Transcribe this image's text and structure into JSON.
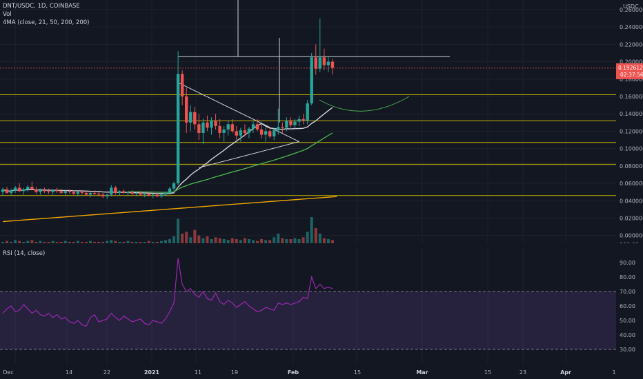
{
  "header": {
    "symbol": "DNT/USDC, 1D, COINBASE",
    "indicator_vol": "Vol",
    "indicator_ma": "4MA (close, 21, 50, 200, 200)"
  },
  "rsi": {
    "label": "RSI (14, close)",
    "upper_band": 70,
    "lower_band": 30,
    "axis_labels": [
      "90.00",
      "80.00",
      "70.00",
      "60.00",
      "50.00",
      "40.00",
      "30.00"
    ]
  },
  "price_axis": {
    "currency": "USDC",
    "labels": [
      "0.260000",
      "0.240000",
      "0.220000",
      "0.200000",
      "0.180000",
      "0.160000",
      "0.140000",
      "0.120000",
      "0.100000",
      "0.080000",
      "0.060000",
      "0.040000",
      "0.020000",
      "0.000000"
    ],
    "vol_label": "100.00",
    "current_price": "0.192612",
    "countdown": "02:37:56"
  },
  "time_axis": {
    "labels": [
      "Dec",
      "14",
      "22",
      "2021",
      "11",
      "19",
      "Feb",
      "15",
      "Mar",
      "15",
      "23",
      "Apr",
      "1"
    ]
  },
  "colors": {
    "background": "#131722",
    "up": "#26a69a",
    "down": "#ef5350",
    "horizontal_level": "#c8b400",
    "rsi_line": "#9c27b0",
    "rsi_band": "#7e57c2",
    "ma_fast": "#26a69a",
    "ma_mid": "#4caf50",
    "ma_slow": "#d1d4dc",
    "ma_long": "#f0a500"
  },
  "chart_data": {
    "type": "candlestick",
    "horizontal_levels": [
      0.162,
      0.132,
      0.107,
      0.082,
      0.046
    ],
    "ohlc": [
      [
        0.05,
        0.055,
        0.046,
        0.053
      ],
      [
        0.053,
        0.056,
        0.048,
        0.049
      ],
      [
        0.049,
        0.054,
        0.046,
        0.052
      ],
      [
        0.052,
        0.057,
        0.049,
        0.055
      ],
      [
        0.055,
        0.06,
        0.05,
        0.051
      ],
      [
        0.051,
        0.055,
        0.047,
        0.053
      ],
      [
        0.053,
        0.058,
        0.05,
        0.056
      ],
      [
        0.056,
        0.062,
        0.052,
        0.053
      ],
      [
        0.053,
        0.056,
        0.048,
        0.05
      ],
      [
        0.05,
        0.054,
        0.047,
        0.052
      ],
      [
        0.052,
        0.055,
        0.049,
        0.051
      ],
      [
        0.051,
        0.054,
        0.048,
        0.05
      ],
      [
        0.05,
        0.053,
        0.047,
        0.052
      ],
      [
        0.052,
        0.055,
        0.049,
        0.051
      ],
      [
        0.051,
        0.054,
        0.048,
        0.049
      ],
      [
        0.049,
        0.052,
        0.046,
        0.051
      ],
      [
        0.051,
        0.053,
        0.048,
        0.05
      ],
      [
        0.05,
        0.052,
        0.047,
        0.048
      ],
      [
        0.048,
        0.051,
        0.045,
        0.05
      ],
      [
        0.05,
        0.052,
        0.047,
        0.049
      ],
      [
        0.049,
        0.051,
        0.046,
        0.047
      ],
      [
        0.047,
        0.05,
        0.044,
        0.049
      ],
      [
        0.049,
        0.052,
        0.046,
        0.048
      ],
      [
        0.048,
        0.05,
        0.045,
        0.047
      ],
      [
        0.047,
        0.049,
        0.043,
        0.045
      ],
      [
        0.045,
        0.048,
        0.042,
        0.047
      ],
      [
        0.047,
        0.058,
        0.045,
        0.055
      ],
      [
        0.055,
        0.057,
        0.047,
        0.049
      ],
      [
        0.049,
        0.052,
        0.046,
        0.051
      ],
      [
        0.051,
        0.053,
        0.048,
        0.049
      ],
      [
        0.049,
        0.051,
        0.046,
        0.05
      ],
      [
        0.05,
        0.052,
        0.047,
        0.048
      ],
      [
        0.048,
        0.05,
        0.045,
        0.049
      ],
      [
        0.049,
        0.051,
        0.046,
        0.047
      ],
      [
        0.047,
        0.049,
        0.044,
        0.048
      ],
      [
        0.048,
        0.05,
        0.045,
        0.046
      ],
      [
        0.046,
        0.048,
        0.043,
        0.047
      ],
      [
        0.047,
        0.049,
        0.044,
        0.045
      ],
      [
        0.045,
        0.048,
        0.043,
        0.047
      ],
      [
        0.047,
        0.05,
        0.045,
        0.049
      ],
      [
        0.049,
        0.056,
        0.047,
        0.054
      ],
      [
        0.054,
        0.062,
        0.051,
        0.06
      ],
      [
        0.06,
        0.212,
        0.058,
        0.186
      ],
      [
        0.186,
        0.19,
        0.15,
        0.16
      ],
      [
        0.16,
        0.17,
        0.118,
        0.13
      ],
      [
        0.13,
        0.15,
        0.12,
        0.142
      ],
      [
        0.142,
        0.148,
        0.122,
        0.128
      ],
      [
        0.128,
        0.14,
        0.11,
        0.118
      ],
      [
        0.118,
        0.135,
        0.105,
        0.13
      ],
      [
        0.13,
        0.138,
        0.12,
        0.124
      ],
      [
        0.124,
        0.136,
        0.116,
        0.132
      ],
      [
        0.132,
        0.14,
        0.122,
        0.126
      ],
      [
        0.126,
        0.134,
        0.112,
        0.118
      ],
      [
        0.118,
        0.126,
        0.108,
        0.122
      ],
      [
        0.122,
        0.132,
        0.115,
        0.128
      ],
      [
        0.128,
        0.134,
        0.118,
        0.12
      ],
      [
        0.12,
        0.126,
        0.11,
        0.115
      ],
      [
        0.115,
        0.124,
        0.108,
        0.121
      ],
      [
        0.121,
        0.128,
        0.114,
        0.118
      ],
      [
        0.118,
        0.125,
        0.112,
        0.123
      ],
      [
        0.123,
        0.132,
        0.118,
        0.128
      ],
      [
        0.128,
        0.134,
        0.12,
        0.122
      ],
      [
        0.122,
        0.128,
        0.112,
        0.116
      ],
      [
        0.116,
        0.124,
        0.108,
        0.12
      ],
      [
        0.12,
        0.125,
        0.112,
        0.114
      ],
      [
        0.114,
        0.124,
        0.11,
        0.121
      ],
      [
        0.121,
        0.146,
        0.116,
        0.125
      ],
      [
        0.125,
        0.13,
        0.118,
        0.124
      ],
      [
        0.124,
        0.136,
        0.12,
        0.132
      ],
      [
        0.132,
        0.136,
        0.124,
        0.127
      ],
      [
        0.127,
        0.134,
        0.122,
        0.131
      ],
      [
        0.131,
        0.138,
        0.126,
        0.134
      ],
      [
        0.134,
        0.14,
        0.128,
        0.132
      ],
      [
        0.132,
        0.156,
        0.128,
        0.152
      ],
      [
        0.152,
        0.21,
        0.15,
        0.205
      ],
      [
        0.205,
        0.22,
        0.185,
        0.192
      ],
      [
        0.192,
        0.25,
        0.188,
        0.205
      ],
      [
        0.205,
        0.215,
        0.19,
        0.196
      ],
      [
        0.196,
        0.206,
        0.188,
        0.2
      ],
      [
        0.2,
        0.203,
        0.185,
        0.193
      ]
    ],
    "volume": [
      3,
      4,
      3,
      5,
      4,
      3,
      4,
      5,
      3,
      4,
      3,
      3,
      4,
      3,
      3,
      4,
      3,
      3,
      4,
      3,
      3,
      4,
      3,
      3,
      3,
      4,
      5,
      4,
      3,
      3,
      4,
      3,
      3,
      3,
      3,
      4,
      3,
      3,
      4,
      5,
      6,
      9,
      28,
      12,
      14,
      8,
      16,
      10,
      7,
      9,
      6,
      8,
      7,
      6,
      5,
      7,
      6,
      5,
      7,
      6,
      5,
      4,
      6,
      5,
      5,
      8,
      12,
      7,
      6,
      6,
      7,
      6,
      8,
      14,
      30,
      18,
      12,
      7,
      6,
      5
    ],
    "rsi_values": [
      55,
      58,
      60,
      56,
      57,
      61,
      58,
      55,
      57,
      54,
      53,
      55,
      52,
      54,
      51,
      52,
      49,
      48,
      50,
      47,
      46,
      52,
      54,
      49,
      50,
      51,
      55,
      52,
      50,
      53,
      51,
      49,
      50,
      51,
      48,
      47,
      50,
      49,
      48,
      51,
      56,
      62,
      93,
      75,
      70,
      72,
      68,
      66,
      70,
      65,
      64,
      69,
      63,
      61,
      64,
      62,
      59,
      61,
      63,
      60,
      58,
      56,
      57,
      59,
      58,
      57,
      62,
      61,
      62,
      61,
      62,
      63,
      66,
      65,
      80,
      72,
      75,
      72,
      73,
      72
    ],
    "price_range": [
      -0.005,
      0.275
    ],
    "rsi_range": [
      20,
      100
    ]
  }
}
